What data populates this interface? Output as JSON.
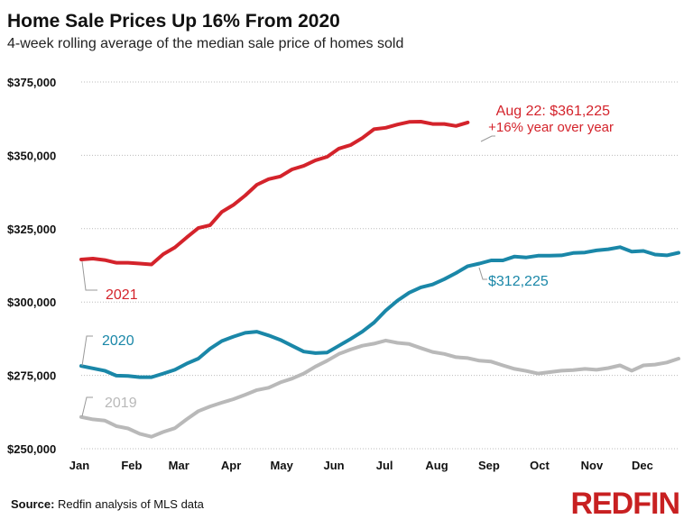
{
  "chart_data": {
    "type": "line",
    "title": "Home Sale Prices Up 16% From 2020",
    "subtitle": "4-week rolling average of the median sale price of homes sold",
    "xlabel": "",
    "ylabel": "",
    "x_tick_labels": [
      "Jan",
      "Feb",
      "Mar",
      "Apr",
      "May",
      "Jun",
      "Jul",
      "Aug",
      "Sep",
      "Oct",
      "Nov",
      "Dec"
    ],
    "y_tick_labels": [
      "$375,000",
      "$350,000",
      "$325,000",
      "$300,000",
      "$275,000",
      "$250,000"
    ],
    "y_ticks": [
      375000,
      350000,
      325000,
      300000,
      275000,
      250000
    ],
    "ylim": [
      250000,
      375000
    ],
    "x_unit": "week of year",
    "grid": true,
    "legend": "none (series labeled directly)",
    "series": [
      {
        "name": "2019",
        "color": "#b9b9b9",
        "values": [
          260800,
          260000,
          259600,
          257700,
          256900,
          255100,
          254100,
          255700,
          257000,
          260000,
          262800,
          264400,
          265700,
          266900,
          268400,
          270000,
          270800,
          272600,
          273900,
          275600,
          278000,
          280000,
          282300,
          283800,
          285100,
          285800,
          286900,
          286100,
          285700,
          284300,
          283000,
          282300,
          281200,
          280900,
          280000,
          279700,
          278400,
          277200,
          276500,
          275600,
          276100,
          276600,
          276800,
          277200,
          276900,
          277500,
          278400,
          276600,
          278400,
          278700,
          279400,
          280700
        ]
      },
      {
        "name": "2020",
        "color": "#1a87a8",
        "values": [
          278200,
          277400,
          276600,
          274900,
          274800,
          274400,
          274400,
          275600,
          276900,
          279000,
          280700,
          284100,
          286700,
          288200,
          289500,
          289900,
          288600,
          287100,
          285100,
          283100,
          282600,
          282800,
          285100,
          287400,
          289900,
          293000,
          297100,
          300500,
          303200,
          305000,
          306000,
          307800,
          309900,
          312225,
          313100,
          314200,
          314200,
          315500,
          315200,
          315800,
          315800,
          315900,
          316700,
          316900,
          317600,
          318000,
          318700,
          317200,
          317400,
          316200,
          315900,
          316800
        ]
      },
      {
        "name": "2021",
        "color": "#d4232b",
        "values": [
          314500,
          314800,
          314300,
          313400,
          313400,
          313100,
          312800,
          316300,
          318600,
          322000,
          325200,
          326200,
          330700,
          333100,
          336300,
          340000,
          341900,
          342800,
          345200,
          346400,
          348300,
          349500,
          352300,
          353500,
          355900,
          358900,
          359400,
          360500,
          361400,
          361500,
          360700,
          360700,
          360000,
          361225
        ]
      }
    ],
    "annotations": {
      "label_2021": "2021",
      "label_2020": "2020",
      "label_2019": "2019",
      "value_2020": "$312,225",
      "latest_line1": "Aug 22: $361,225",
      "latest_line2": "+16% year over year"
    }
  },
  "footer": {
    "source_label": "Source:",
    "source_text": " Redfin analysis of MLS data",
    "logo": "REDFIN",
    "logo_color": "#c82021"
  }
}
